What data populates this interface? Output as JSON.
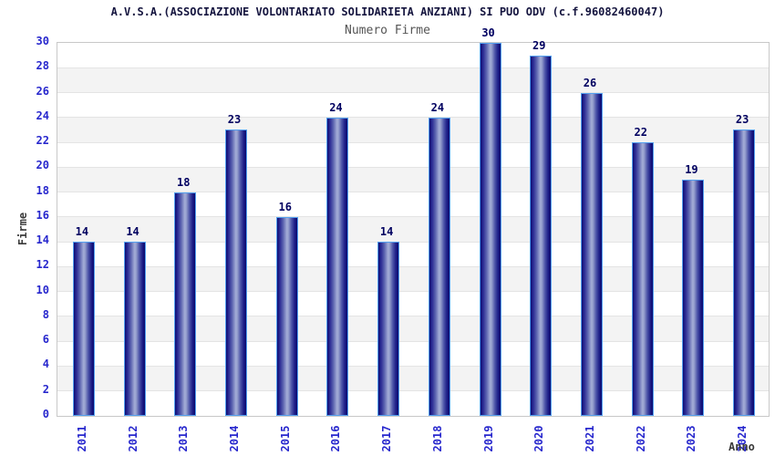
{
  "chart_data": {
    "type": "bar",
    "title": "A.V.S.A.(ASSOCIAZIONE VOLONTARIATO SOLIDARIETA ANZIANI) SI PUO ODV (c.f.96082460047)",
    "subtitle": "Numero Firme",
    "xlabel": "Anno",
    "ylabel": "Firme",
    "categories": [
      "2011",
      "2012",
      "2013",
      "2014",
      "2015",
      "2016",
      "2017",
      "2018",
      "2019",
      "2020",
      "2021",
      "2022",
      "2023",
      "2024"
    ],
    "values": [
      14,
      14,
      18,
      23,
      16,
      24,
      14,
      24,
      30,
      29,
      26,
      22,
      19,
      23
    ],
    "ylim": [
      0,
      30
    ],
    "ytick_step": 2,
    "grid": true,
    "alternating_bands": true,
    "legend": null,
    "colors": {
      "title": "#15153f",
      "subtitle": "#555555",
      "tick_label": "#2727cd",
      "value_label": "#000060",
      "axis_title": "#3a3a3a",
      "bar_edge": "#0d0d74",
      "bar_center": "#a2abd6",
      "bar_border": "#54a0ef",
      "band": "#f3f3f3",
      "gridline": "#e4e4e4",
      "plot_border": "#c8c8c8",
      "background": "#ffffff"
    }
  }
}
